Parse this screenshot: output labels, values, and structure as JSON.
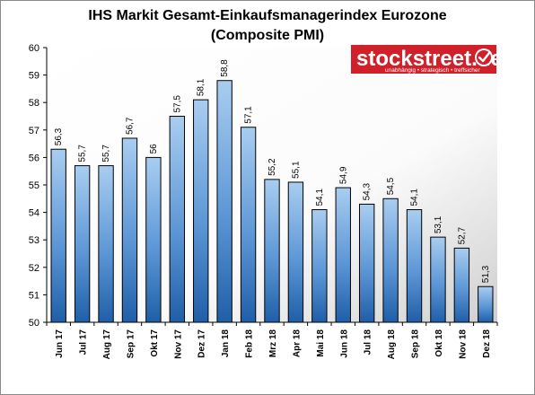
{
  "chart_data": {
    "type": "bar",
    "title": "IHS Markit Gesamt-Einkaufsmanagerindex Eurozone",
    "subtitle": "(Composite PMI)",
    "categories": [
      "Jun 17",
      "Jul 17",
      "Aug 17",
      "Sep 17",
      "Okt 17",
      "Nov 17",
      "Dez 17",
      "Jan 18",
      "Feb 18",
      "Mrz 18",
      "Apr 18",
      "Mai 18",
      "Jun 18",
      "Jul 18",
      "Aug 18",
      "Sep 18",
      "Okt 18",
      "Nov 18",
      "Dez 18"
    ],
    "values": [
      56.3,
      55.7,
      55.7,
      56.7,
      56,
      57.5,
      58.1,
      58.8,
      57.1,
      55.2,
      55.1,
      54.1,
      54.9,
      54.3,
      54.5,
      54.1,
      53.1,
      52.7,
      51.3
    ],
    "data_labels": [
      "56,3",
      "55,7",
      "55,7",
      "56,7",
      "56",
      "57,5",
      "58,1",
      "58,8",
      "57,1",
      "55,2",
      "55,1",
      "54,1",
      "54,9",
      "54,3",
      "54,5",
      "54,1",
      "53,1",
      "52,7",
      "51,3"
    ],
    "ylim": [
      50,
      60
    ],
    "yticks": [
      "50",
      "51",
      "52",
      "53",
      "54",
      "55",
      "56",
      "57",
      "58",
      "59",
      "60"
    ],
    "xlabel": "",
    "ylabel": "",
    "grid": false,
    "legend": "none",
    "bar_color_top": "#a9cdf0",
    "bar_color_bottom": "#1f5fa8"
  },
  "logo": {
    "name": "stockstreet.de",
    "tagline": "unabhängig • strategisch • treffsicher",
    "color": "#d0212a"
  }
}
